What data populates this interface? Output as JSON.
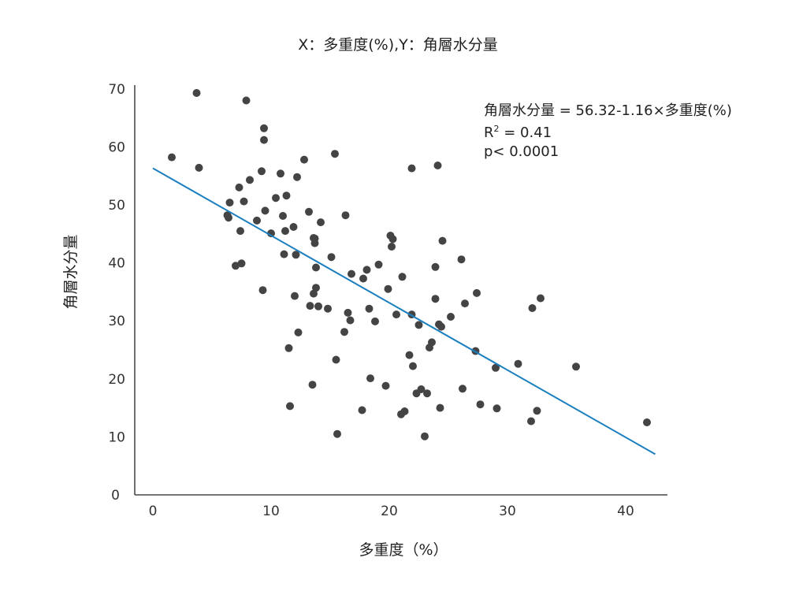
{
  "chart_data": {
    "type": "scatter",
    "title": "X：多重度(%),Y：角層水分量",
    "xlabel": "多重度（%）",
    "ylabel": "角層水分量",
    "xlim": [
      -1.5,
      43.5
    ],
    "ylim": [
      0,
      72
    ],
    "x_ticks": [
      0,
      10,
      20,
      30,
      40
    ],
    "y_ticks": [
      0,
      10,
      20,
      30,
      40,
      50,
      60,
      70
    ],
    "grid": false,
    "annotations": [
      "角層水分量 = 56.32-1.16×多重度(%)",
      "R",
      "2",
      " = 0.41",
      "p< 0.0001"
    ],
    "regression": {
      "intercept": 56.32,
      "slope": -1.16,
      "x_range": [
        0,
        42.5
      ]
    },
    "points": [
      [
        1.6,
        58.2
      ],
      [
        3.7,
        69.3
      ],
      [
        3.9,
        56.4
      ],
      [
        6.3,
        48.2
      ],
      [
        6.5,
        50.4
      ],
      [
        6.4,
        47.8
      ],
      [
        7.0,
        39.5
      ],
      [
        7.3,
        53.0
      ],
      [
        7.4,
        45.5
      ],
      [
        7.5,
        39.9
      ],
      [
        7.7,
        50.6
      ],
      [
        7.9,
        68.0
      ],
      [
        8.2,
        54.3
      ],
      [
        8.8,
        47.3
      ],
      [
        9.2,
        55.8
      ],
      [
        9.3,
        35.3
      ],
      [
        9.4,
        63.2
      ],
      [
        9.4,
        61.2
      ],
      [
        9.5,
        49.0
      ],
      [
        10.0,
        45.1
      ],
      [
        10.4,
        51.2
      ],
      [
        10.8,
        55.4
      ],
      [
        11.0,
        48.1
      ],
      [
        11.1,
        41.5
      ],
      [
        11.3,
        51.6
      ],
      [
        11.2,
        45.5
      ],
      [
        11.5,
        25.3
      ],
      [
        11.6,
        15.3
      ],
      [
        11.9,
        46.2
      ],
      [
        12.0,
        34.3
      ],
      [
        12.1,
        41.4
      ],
      [
        12.2,
        54.8
      ],
      [
        12.3,
        28.0
      ],
      [
        12.8,
        57.8
      ],
      [
        13.2,
        48.8
      ],
      [
        13.3,
        32.6
      ],
      [
        13.5,
        19.0
      ],
      [
        13.6,
        34.7
      ],
      [
        13.6,
        44.3
      ],
      [
        13.7,
        43.4
      ],
      [
        13.7,
        44.2
      ],
      [
        13.8,
        39.2
      ],
      [
        13.8,
        35.7
      ],
      [
        14.0,
        32.5
      ],
      [
        14.2,
        47.0
      ],
      [
        14.8,
        32.1
      ],
      [
        15.1,
        41.0
      ],
      [
        15.4,
        58.8
      ],
      [
        15.5,
        23.3
      ],
      [
        15.6,
        10.5
      ],
      [
        16.2,
        28.1
      ],
      [
        16.3,
        48.2
      ],
      [
        16.5,
        31.4
      ],
      [
        16.7,
        30.1
      ],
      [
        16.8,
        38.1
      ],
      [
        17.7,
        14.6
      ],
      [
        17.8,
        37.3
      ],
      [
        18.1,
        38.8
      ],
      [
        18.3,
        32.1
      ],
      [
        18.4,
        20.1
      ],
      [
        18.8,
        29.9
      ],
      [
        19.1,
        39.7
      ],
      [
        19.7,
        18.8
      ],
      [
        19.9,
        35.5
      ],
      [
        20.1,
        44.7
      ],
      [
        20.2,
        42.8
      ],
      [
        20.3,
        44.1
      ],
      [
        20.6,
        31.1
      ],
      [
        21.0,
        13.9
      ],
      [
        21.1,
        37.6
      ],
      [
        21.3,
        14.4
      ],
      [
        21.7,
        24.1
      ],
      [
        21.9,
        56.3
      ],
      [
        21.9,
        31.1
      ],
      [
        22.0,
        22.2
      ],
      [
        22.3,
        17.5
      ],
      [
        22.5,
        29.3
      ],
      [
        22.7,
        18.2
      ],
      [
        23.0,
        10.1
      ],
      [
        23.2,
        17.5
      ],
      [
        23.4,
        25.4
      ],
      [
        23.6,
        26.3
      ],
      [
        23.9,
        33.8
      ],
      [
        23.9,
        39.3
      ],
      [
        24.1,
        56.8
      ],
      [
        24.2,
        29.4
      ],
      [
        24.3,
        15.0
      ],
      [
        24.4,
        29.0
      ],
      [
        24.5,
        43.8
      ],
      [
        25.2,
        30.7
      ],
      [
        26.1,
        40.6
      ],
      [
        26.2,
        18.3
      ],
      [
        26.4,
        33.0
      ],
      [
        27.3,
        24.8
      ],
      [
        27.4,
        34.8
      ],
      [
        27.7,
        15.6
      ],
      [
        29.0,
        21.9
      ],
      [
        29.1,
        14.9
      ],
      [
        30.9,
        22.6
      ],
      [
        32.0,
        12.7
      ],
      [
        32.1,
        32.2
      ],
      [
        32.5,
        14.5
      ],
      [
        32.8,
        33.9
      ],
      [
        35.8,
        22.1
      ],
      [
        41.8,
        12.5
      ]
    ]
  }
}
